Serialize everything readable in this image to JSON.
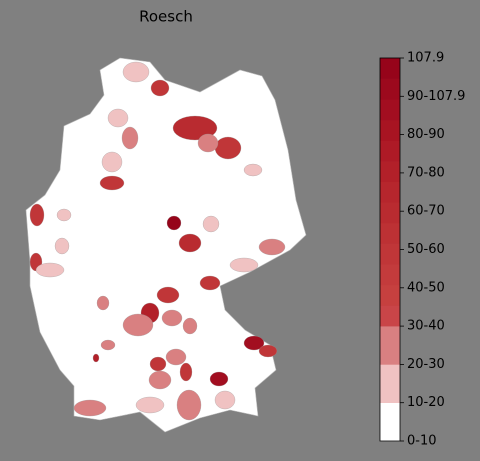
{
  "title": "Roesch",
  "colorbar": {
    "ticks": [
      "0-10",
      "10-20",
      "20-30",
      "30-40",
      "40-50",
      "50-60",
      "60-70",
      "70-80",
      "80-90",
      "90-107.9",
      "107.9"
    ],
    "colors": [
      "#ffffff",
      "#f0c2c2",
      "#d98081",
      "#c94548",
      "#c6403f",
      "#c33b3c",
      "#c03638",
      "#bd3134",
      "#b92b30",
      "#b6262d",
      "#b22029",
      "#ae1a26",
      "#a81422",
      "#a20e20",
      "#9c091d",
      "#96041a"
    ]
  }
}
